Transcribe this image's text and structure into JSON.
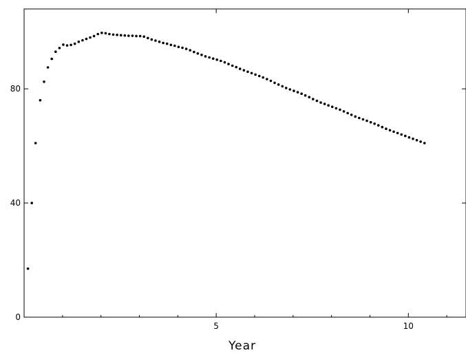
{
  "chart_data": {
    "type": "scatter",
    "title": "",
    "xlabel": "Year",
    "ylabel": "",
    "xlim": [
      0,
      11.5
    ],
    "ylim": [
      0,
      108
    ],
    "xticks": [
      5,
      10
    ],
    "yticks": [
      0,
      40,
      80
    ],
    "xtick_labels": [
      "5",
      "10"
    ],
    "ytick_labels": [
      "0",
      "40",
      "80"
    ],
    "grid": false,
    "legend": "none",
    "marker_color": "#000000",
    "series": [
      {
        "points": [
          [
            0.1,
            17
          ],
          [
            0.2,
            40
          ],
          [
            0.3,
            61
          ],
          [
            0.42,
            76
          ],
          [
            0.52,
            82.5
          ],
          [
            0.62,
            87.5
          ],
          [
            0.72,
            90.5
          ],
          [
            0.82,
            93
          ],
          [
            0.92,
            94.3
          ],
          [
            1.02,
            95.5
          ],
          [
            1.12,
            95.2
          ],
          [
            1.22,
            95.4
          ],
          [
            1.32,
            95.8
          ],
          [
            1.42,
            96.5
          ],
          [
            1.52,
            97
          ],
          [
            1.62,
            97.5
          ],
          [
            1.72,
            98
          ],
          [
            1.82,
            98.5
          ],
          [
            1.92,
            99.2
          ],
          [
            2.02,
            99.6
          ],
          [
            2.12,
            99.5
          ],
          [
            2.22,
            99.2
          ],
          [
            2.32,
            99
          ],
          [
            2.42,
            98.9
          ],
          [
            2.52,
            98.8
          ],
          [
            2.62,
            98.7
          ],
          [
            2.72,
            98.6
          ],
          [
            2.82,
            98.6
          ],
          [
            2.92,
            98.5
          ],
          [
            3.02,
            98.5
          ],
          [
            3.12,
            98.3
          ],
          [
            3.22,
            97.8
          ],
          [
            3.32,
            97.3
          ],
          [
            3.42,
            96.9
          ],
          [
            3.52,
            96.5
          ],
          [
            3.62,
            96.1
          ],
          [
            3.72,
            95.8
          ],
          [
            3.82,
            95.4
          ],
          [
            3.92,
            95.1
          ],
          [
            4.02,
            94.7
          ],
          [
            4.12,
            94.4
          ],
          [
            4.22,
            94
          ],
          [
            4.32,
            93.5
          ],
          [
            4.42,
            92.9
          ],
          [
            4.52,
            92.4
          ],
          [
            4.62,
            91.9
          ],
          [
            4.72,
            91.4
          ],
          [
            4.82,
            91
          ],
          [
            4.92,
            90.6
          ],
          [
            5.02,
            90.2
          ],
          [
            5.12,
            89.8
          ],
          [
            5.22,
            89.3
          ],
          [
            5.32,
            88.7
          ],
          [
            5.42,
            88.1
          ],
          [
            5.52,
            87.6
          ],
          [
            5.62,
            87
          ],
          [
            5.72,
            86.5
          ],
          [
            5.82,
            86
          ],
          [
            5.92,
            85.5
          ],
          [
            6.02,
            85
          ],
          [
            6.12,
            84.5
          ],
          [
            6.22,
            84
          ],
          [
            6.32,
            83.4
          ],
          [
            6.42,
            82.8
          ],
          [
            6.52,
            82.1
          ],
          [
            6.62,
            81.5
          ],
          [
            6.72,
            80.9
          ],
          [
            6.82,
            80.3
          ],
          [
            6.92,
            79.8
          ],
          [
            7.02,
            79.3
          ],
          [
            7.12,
            78.8
          ],
          [
            7.22,
            78.3
          ],
          [
            7.32,
            77.7
          ],
          [
            7.42,
            77.1
          ],
          [
            7.52,
            76.4
          ],
          [
            7.62,
            75.8
          ],
          [
            7.72,
            75.2
          ],
          [
            7.82,
            74.7
          ],
          [
            7.92,
            74.2
          ],
          [
            8.02,
            73.7
          ],
          [
            8.12,
            73.2
          ],
          [
            8.22,
            72.7
          ],
          [
            8.32,
            72.1
          ],
          [
            8.42,
            71.5
          ],
          [
            8.52,
            70.9
          ],
          [
            8.62,
            70.3
          ],
          [
            8.72,
            69.8
          ],
          [
            8.82,
            69.3
          ],
          [
            8.92,
            68.8
          ],
          [
            9.02,
            68.3
          ],
          [
            9.12,
            67.8
          ],
          [
            9.22,
            67.2
          ],
          [
            9.32,
            66.6
          ],
          [
            9.42,
            66
          ],
          [
            9.52,
            65.5
          ],
          [
            9.62,
            65
          ],
          [
            9.72,
            64.5
          ],
          [
            9.82,
            64
          ],
          [
            9.92,
            63.5
          ],
          [
            10.02,
            63
          ],
          [
            10.12,
            62.5
          ],
          [
            10.22,
            62
          ],
          [
            10.32,
            61.5
          ],
          [
            10.42,
            61
          ]
        ]
      }
    ]
  }
}
